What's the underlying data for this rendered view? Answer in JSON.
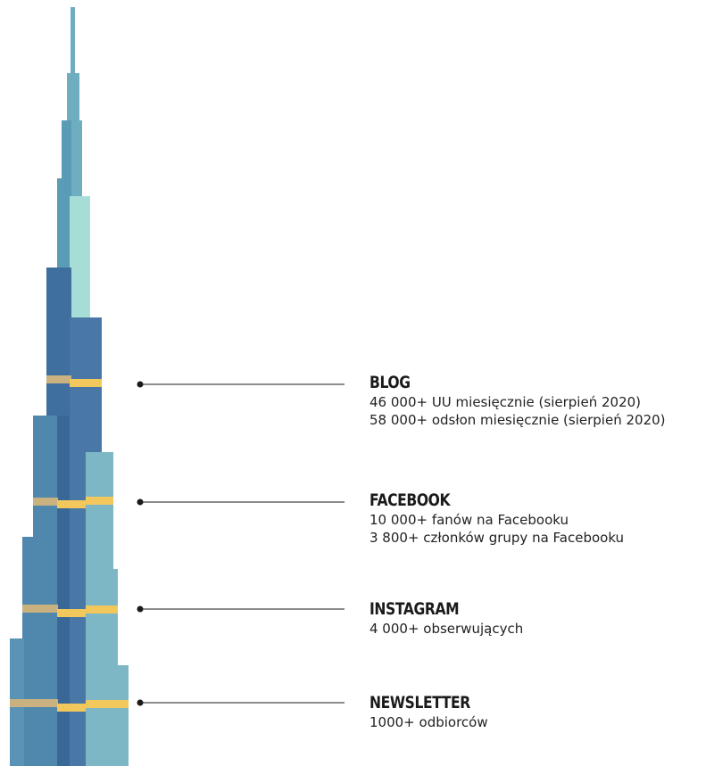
{
  "colors": {
    "spire": "#6eaec0",
    "light_teal": "#a6ddd6",
    "dark_blue": "#3f6f9f",
    "mid_blue": "#4a78a6",
    "steel_blue": "#5087ac",
    "light_blue": "#7db6c4",
    "band_gold": "#f2c85c",
    "band_tan": "#c9b27f",
    "line": "#1a1a1a"
  },
  "sections": [
    {
      "id": "blog",
      "title": "BLOG",
      "lines": [
        "46 000+ UU miesięcznie (sierpień 2020)",
        "58 000+ odsłon miesięcznie (sierpień 2020)"
      ]
    },
    {
      "id": "facebook",
      "title": "FACEBOOK",
      "lines": [
        "10 000+ fanów na Facebooku",
        "3 800+ członków grupy na Facebooku"
      ]
    },
    {
      "id": "instagram",
      "title": "INSTAGRAM",
      "lines": [
        "4 000+ obserwujących"
      ]
    },
    {
      "id": "newsletter",
      "title": "NEWSLETTER",
      "lines": [
        "1000+ odbiorców"
      ]
    }
  ]
}
